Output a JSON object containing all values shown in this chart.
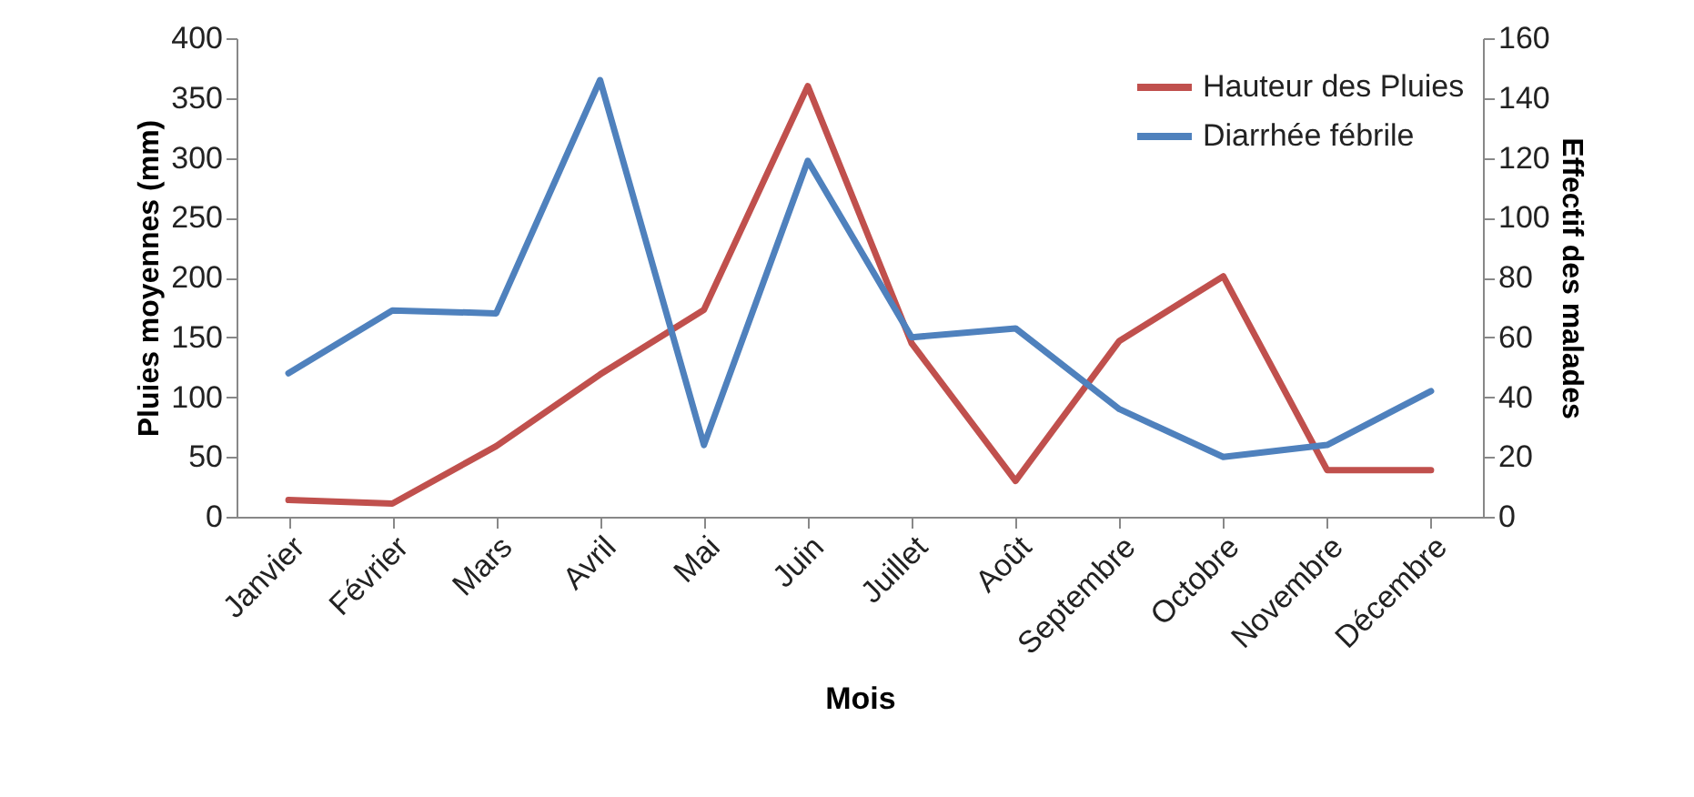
{
  "chart_data": {
    "type": "line",
    "xlabel": "Mois",
    "ylabel": "Pluies moyennes (mm)",
    "y2label": "Effectif des malades",
    "categories": [
      "Janvier",
      "Février",
      "Mars",
      "Avril",
      "Mai",
      "Juin",
      "Juillet",
      "Août",
      "Septembre",
      "Octobre",
      "Novembre",
      "Décembre"
    ],
    "series": [
      {
        "name": "Hauteur des Pluies",
        "color": "#c0504d",
        "values": [
          14,
          11,
          59,
          119,
          173,
          360,
          145,
          30,
          147,
          201,
          39,
          39
        ]
      },
      {
        "name": "Diarrhée fébrile",
        "color": "#4f81bd",
        "axis": "y2",
        "values": [
          48,
          69,
          68,
          146,
          24,
          119,
          60,
          63,
          36,
          20,
          24,
          42
        ]
      }
    ],
    "ylim": [
      0,
      400
    ],
    "yticks": [
      0,
      50,
      100,
      150,
      200,
      250,
      300,
      350,
      400
    ],
    "y2lim": [
      0,
      160
    ],
    "y2ticks": [
      0,
      20,
      40,
      60,
      80,
      100,
      120,
      140,
      160
    ],
    "grid": false,
    "legend": "top right",
    "marker": "none",
    "line_style": "solid"
  }
}
